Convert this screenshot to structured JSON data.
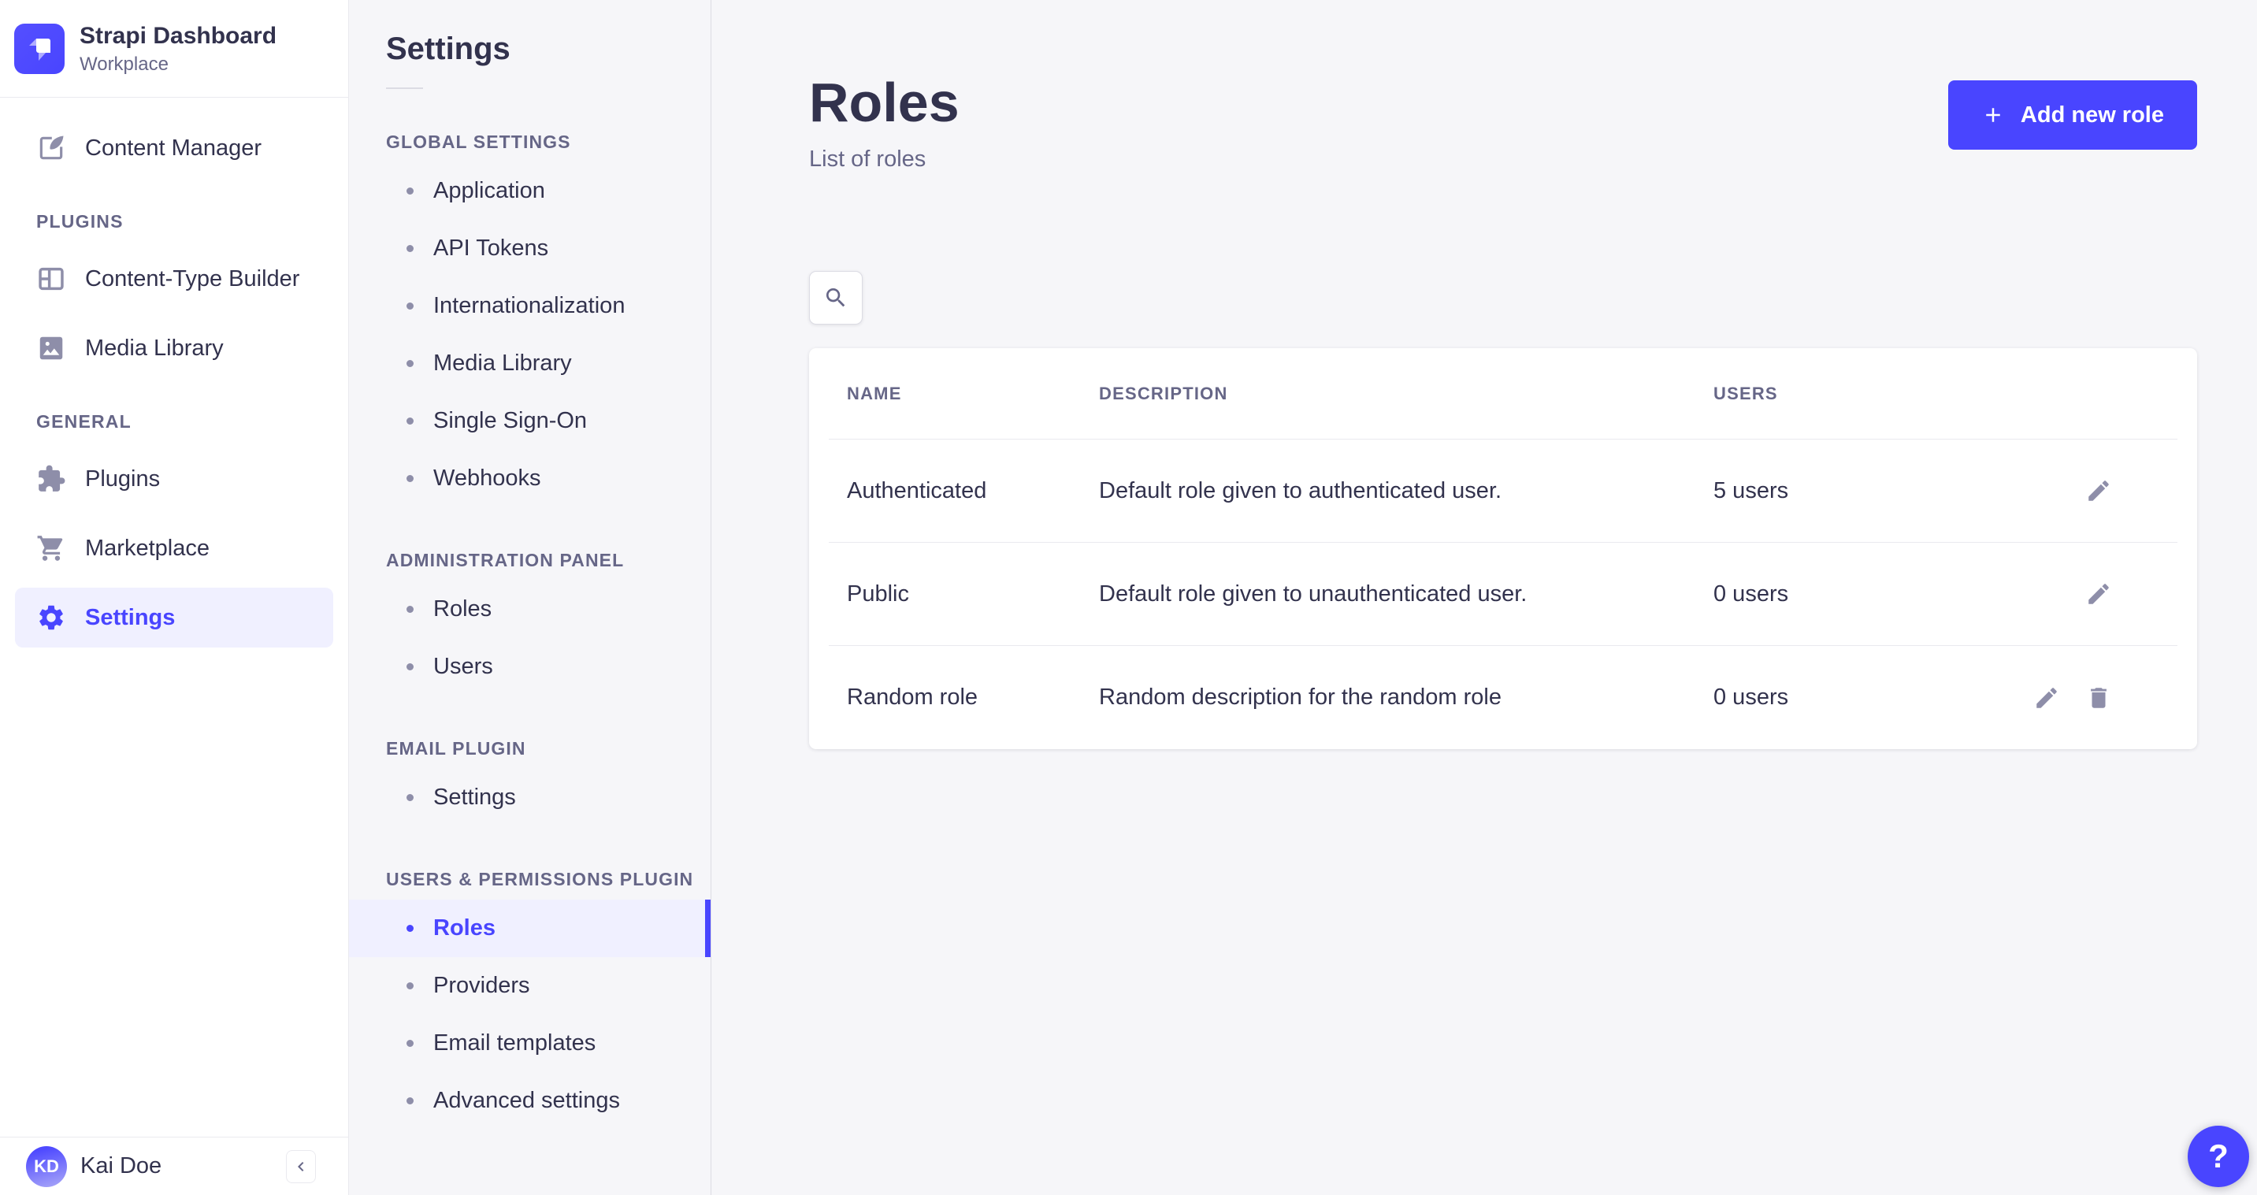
{
  "brand": {
    "title": "Strapi Dashboard",
    "subtitle": "Workplace"
  },
  "main_nav": {
    "groups": [
      {
        "label": "",
        "items": [
          {
            "label": "Content Manager",
            "icon": "content-manager-icon",
            "active": false
          }
        ]
      },
      {
        "label": "PLUGINS",
        "items": [
          {
            "label": "Content-Type Builder",
            "icon": "content-type-builder-icon",
            "active": false
          },
          {
            "label": "Media Library",
            "icon": "media-library-icon",
            "active": false
          }
        ]
      },
      {
        "label": "GENERAL",
        "items": [
          {
            "label": "Plugins",
            "icon": "plugins-icon",
            "active": false
          },
          {
            "label": "Marketplace",
            "icon": "marketplace-icon",
            "active": false
          },
          {
            "label": "Settings",
            "icon": "settings-icon",
            "active": true
          }
        ]
      }
    ],
    "user": {
      "initials": "KD",
      "name": "Kai Doe"
    }
  },
  "sub_nav": {
    "title": "Settings",
    "sections": [
      {
        "label": "GLOBAL SETTINGS",
        "items": [
          {
            "label": "Application",
            "active": false
          },
          {
            "label": "API Tokens",
            "active": false
          },
          {
            "label": "Internationalization",
            "active": false
          },
          {
            "label": "Media Library",
            "active": false
          },
          {
            "label": "Single Sign-On",
            "active": false
          },
          {
            "label": "Webhooks",
            "active": false
          }
        ]
      },
      {
        "label": "ADMINISTRATION PANEL",
        "items": [
          {
            "label": "Roles",
            "active": false
          },
          {
            "label": "Users",
            "active": false
          }
        ]
      },
      {
        "label": "EMAIL PLUGIN",
        "items": [
          {
            "label": "Settings",
            "active": false
          }
        ]
      },
      {
        "label": "USERS & PERMISSIONS PLUGIN",
        "items": [
          {
            "label": "Roles",
            "active": true
          },
          {
            "label": "Providers",
            "active": false
          },
          {
            "label": "Email templates",
            "active": false
          },
          {
            "label": "Advanced settings",
            "active": false
          }
        ]
      }
    ]
  },
  "page": {
    "title": "Roles",
    "subtitle": "List of roles",
    "add_button_label": "Add new role",
    "help_label": "?"
  },
  "table": {
    "headers": {
      "name": "NAME",
      "description": "DESCRIPTION",
      "users": "USERS"
    },
    "rows": [
      {
        "name": "Authenticated",
        "description": "Default role given to authenticated user.",
        "users": "5 users",
        "actions": [
          "edit"
        ]
      },
      {
        "name": "Public",
        "description": "Default role given to unauthenticated user.",
        "users": "0 users",
        "actions": [
          "edit"
        ]
      },
      {
        "name": "Random role",
        "description": "Random description for the random role",
        "users": "0 users",
        "actions": [
          "edit",
          "delete"
        ]
      }
    ]
  },
  "colors": {
    "primary": "#4945ff",
    "primary_bg": "#f0f0ff",
    "text": "#32324d",
    "muted": "#666687",
    "icon_gray": "#8e8ea9",
    "border": "#eaeaef",
    "app_bg": "#f6f6f9"
  }
}
